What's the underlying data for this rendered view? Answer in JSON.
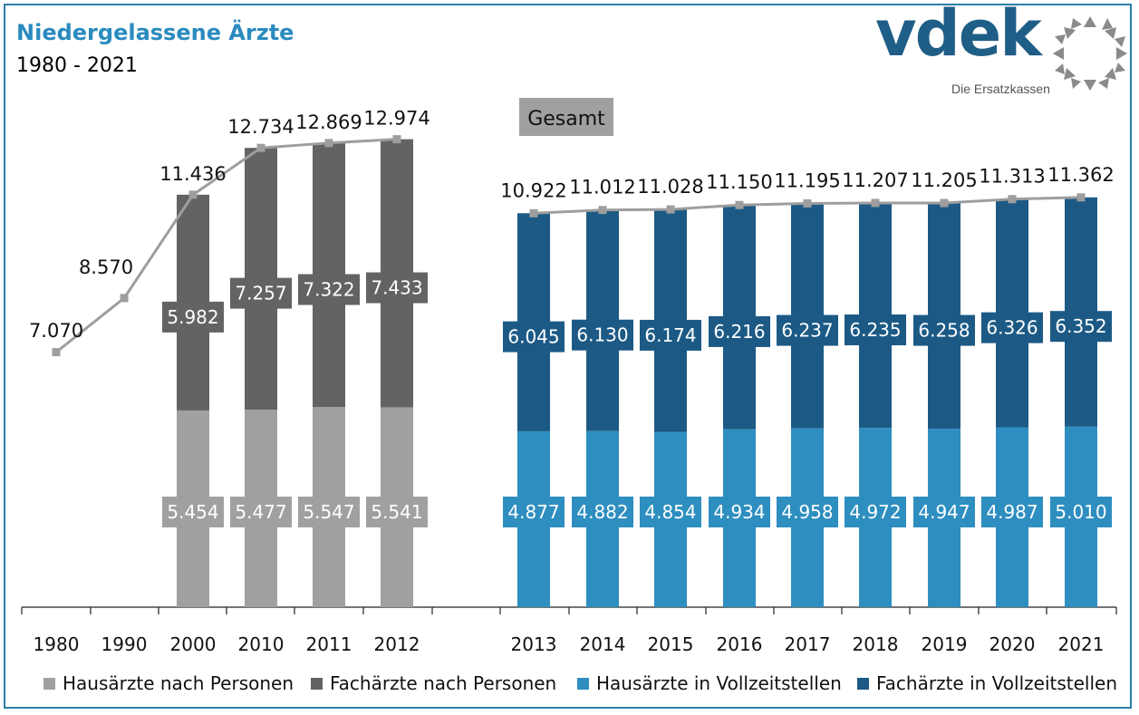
{
  "title": "Niedergelassene Ärzte",
  "subtitle": "1980 - 2021",
  "logo": {
    "name": "vdek",
    "tagline": "Die Ersatzkassen"
  },
  "colors": {
    "haus_personen": "#a0a0a0",
    "fach_personen": "#636363",
    "haus_vzs": "#2e8ec0",
    "fach_vzs": "#1c5a85",
    "total_line": "#9e9e9e",
    "frame": "#2a7fa8"
  },
  "chart_data": {
    "type": "bar",
    "stacked": true,
    "categories": [
      "1980",
      "1990",
      "2000",
      "2010",
      "2011",
      "2012",
      "2013",
      "2014",
      "2015",
      "2016",
      "2017",
      "2018",
      "2019",
      "2020",
      "2021"
    ],
    "series": [
      {
        "name": "Hausärzte nach Personen",
        "values": [
          null,
          null,
          5454,
          5477,
          5547,
          5541,
          null,
          null,
          null,
          null,
          null,
          null,
          null,
          null,
          null
        ],
        "labels": [
          null,
          null,
          "5.454",
          "5.477",
          "5.547",
          "5.541",
          null,
          null,
          null,
          null,
          null,
          null,
          null,
          null,
          null
        ]
      },
      {
        "name": "Fachärzte nach Personen",
        "values": [
          null,
          null,
          5982,
          7257,
          7322,
          7433,
          null,
          null,
          null,
          null,
          null,
          null,
          null,
          null,
          null
        ],
        "labels": [
          null,
          null,
          "5.982",
          "7.257",
          "7.322",
          "7.433",
          null,
          null,
          null,
          null,
          null,
          null,
          null,
          null,
          null
        ]
      },
      {
        "name": "Hausärzte in Vollzeitstellen",
        "values": [
          null,
          null,
          null,
          null,
          null,
          null,
          4877,
          4882,
          4854,
          4934,
          4958,
          4972,
          4947,
          4987,
          5010
        ],
        "labels": [
          null,
          null,
          null,
          null,
          null,
          null,
          "4.877",
          "4.882",
          "4.854",
          "4.934",
          "4.958",
          "4.972",
          "4.947",
          "4.987",
          "5.010"
        ]
      },
      {
        "name": "Fachärzte in Vollzeitstellen",
        "values": [
          null,
          null,
          null,
          null,
          null,
          null,
          6045,
          6130,
          6174,
          6216,
          6237,
          6235,
          6258,
          6326,
          6352
        ],
        "labels": [
          null,
          null,
          null,
          null,
          null,
          null,
          "6.045",
          "6.130",
          "6.174",
          "6.216",
          "6.237",
          "6.235",
          "6.258",
          "6.326",
          "6.352"
        ]
      }
    ],
    "total": {
      "name": "Gesamt",
      "values": [
        7070,
        8570,
        11436,
        12734,
        12869,
        12974,
        10922,
        11012,
        11028,
        11150,
        11195,
        11207,
        11205,
        11313,
        11362
      ],
      "labels": [
        "7.070",
        "8.570",
        "11.436",
        "12.734",
        "12.869",
        "12.974",
        "10.922",
        "11.012",
        "11.028",
        "11.150",
        "11.195",
        "11.207",
        "11.205",
        "11.313",
        "11.362"
      ]
    },
    "annotation": "Gesamt",
    "ylim": [
      0,
      14000
    ],
    "legend": [
      "Hausärzte nach Personen",
      "Fachärzte nach Personen",
      "Hausärzte in Vollzeitstellen",
      "Fachärzte in Vollzeitstellen"
    ],
    "legend_position": "bottom"
  }
}
